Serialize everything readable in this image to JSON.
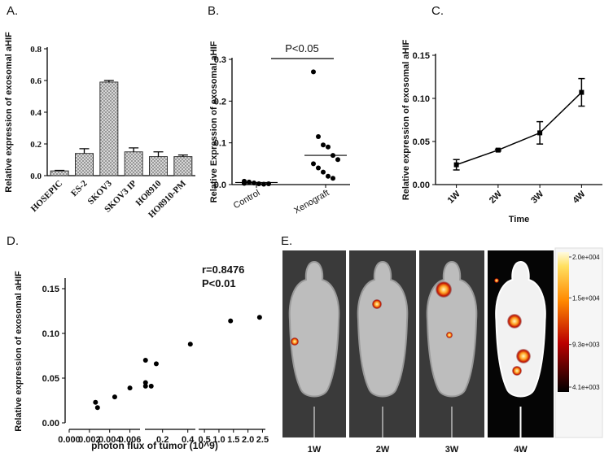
{
  "chart_data": [
    {
      "type": "bar",
      "panel_label": "A.",
      "ylabel": "Relative expression of exosomal aHIF",
      "categories": [
        "HOSEPIC",
        "ES-2",
        "SKOV3",
        "SKOV3 IP",
        "HO8910",
        "HO8910-PM"
      ],
      "values": [
        0.03,
        0.14,
        0.59,
        0.15,
        0.12,
        0.12
      ],
      "errors": [
        0.003,
        0.03,
        0.01,
        0.025,
        0.03,
        0.01
      ],
      "color": "#888",
      "ylim": [
        0,
        0.8
      ],
      "yticks": [
        {
          "value": 0,
          "label": "0.0"
        },
        0.2,
        0.4,
        0.6,
        0.8
      ]
    },
    {
      "type": "dot",
      "panel_label": "B.",
      "ylabel": "Relative Expression of exosomal aHIF",
      "categories": [
        "Control",
        "Xenograft"
      ],
      "groups": [
        [
          0.008,
          0.006,
          0.004,
          0.002,
          0.001,
          0.002,
          0.003,
          0.005
        ],
        [
          0.27,
          0.115,
          0.095,
          0.09,
          0.07,
          0.06,
          0.05,
          0.04,
          0.03,
          0.02,
          0.015
        ]
      ],
      "means": [
        0.005,
        0.07
      ],
      "annotation": "P<0.05",
      "color": "#000",
      "ylim": [
        0,
        0.3
      ],
      "yticks": [
        {
          "value": 0,
          "label": "0.0"
        },
        0.1,
        0.2,
        0.3
      ]
    },
    {
      "type": "line",
      "panel_label": "C.",
      "ylabel": "Relative expression of exosomal aHIF",
      "xlabel": "Time",
      "categories": [
        "1W",
        "2W",
        "3W",
        "4W"
      ],
      "values": [
        0.023,
        0.04,
        0.06,
        0.107
      ],
      "errors": [
        0.006,
        0.001,
        0.013,
        0.016
      ],
      "color": "#000",
      "ylim": [
        0,
        0.15
      ],
      "yticks": [
        {
          "value": 0,
          "label": "0.00"
        },
        0.05,
        {
          "value": 0.1,
          "label": "0.10"
        },
        0.15
      ]
    },
    {
      "type": "scatter",
      "panel_label": "D.",
      "ylabel": "Relative expression of exosomal aHIF",
      "xlabel": "photon flux of tumor (10^9)",
      "annotations": [
        "r=0.8476",
        "P<0.01"
      ],
      "color": "#000",
      "x": [
        0.0026,
        0.0028,
        0.0045,
        0.006,
        0.065,
        0.065,
        0.065,
        0.11,
        0.15,
        0.42,
        1.4,
        2.4
      ],
      "values": [
        0.023,
        0.017,
        0.029,
        0.039,
        0.07,
        0.045,
        0.041,
        0.041,
        0.066,
        0.088,
        0.114,
        0.118
      ],
      "x_segments": [
        {
          "xlim": [
            0,
            0.007
          ],
          "xticks": [
            {
              "value": 0,
              "label": "0.000"
            },
            0.002,
            0.004,
            0.006
          ]
        },
        {
          "xlim": [
            0.06,
            0.46
          ],
          "xticks": [
            0.2,
            0.4
          ]
        },
        {
          "xlim": [
            0.3,
            2.6
          ],
          "xticks": [
            0.5,
            {
              "value": 1,
              "label": "1.0"
            },
            1.5,
            {
              "value": 2,
              "label": "2.0"
            },
            2.5
          ]
        }
      ],
      "ylim": [
        0,
        0.16
      ],
      "yticks": [
        {
          "value": 0,
          "label": "0.00"
        },
        0.05,
        {
          "value": 0.1,
          "label": "0.10"
        },
        0.15
      ]
    }
  ],
  "panel_e": {
    "panel_label": "E.",
    "captions": [
      "1W",
      "2W",
      "3W",
      "4W"
    ],
    "colorbar": {
      "lim": [
        4100,
        20000
      ],
      "ticks": [
        {
          "value": 20000,
          "label": "2.0e+004"
        },
        {
          "value": 15000,
          "label": "1.5e+004"
        },
        {
          "value": 9300,
          "label": "9.3e+003"
        },
        {
          "value": 4100,
          "label": "4.1e+003"
        }
      ]
    }
  }
}
